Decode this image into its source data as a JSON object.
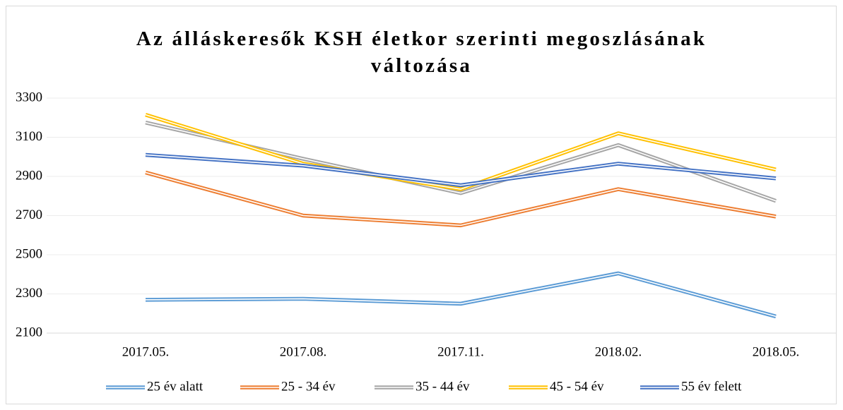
{
  "chart_data": {
    "type": "line",
    "title": "Az álláskeresők KSH életkor szerinti megoszlásának változása",
    "categories": [
      "2017.05.",
      "2017.08.",
      "2017.11.",
      "2018.02.",
      "2018.05."
    ],
    "series": [
      {
        "name": "25 év alatt",
        "color": "#5b9bd5",
        "values": [
          2270,
          2275,
          2250,
          2405,
          2185
        ]
      },
      {
        "name": "25 - 34 év",
        "color": "#ed7d31",
        "values": [
          2920,
          2700,
          2650,
          2835,
          2695
        ]
      },
      {
        "name": "35 - 44 év",
        "color": "#a5a5a5",
        "values": [
          3175,
          2990,
          2815,
          3060,
          2775
        ]
      },
      {
        "name": "45 - 54 év",
        "color": "#ffc000",
        "values": [
          3215,
          2965,
          2835,
          3120,
          2935
        ]
      },
      {
        "name": "55 év felett",
        "color": "#4472c4",
        "values": [
          3010,
          2955,
          2855,
          2965,
          2890
        ]
      }
    ],
    "ylim": [
      2100,
      3300
    ],
    "yticks": [
      2100,
      2300,
      2500,
      2700,
      2900,
      3100,
      3300
    ],
    "grid": true,
    "legend": "bottom"
  }
}
